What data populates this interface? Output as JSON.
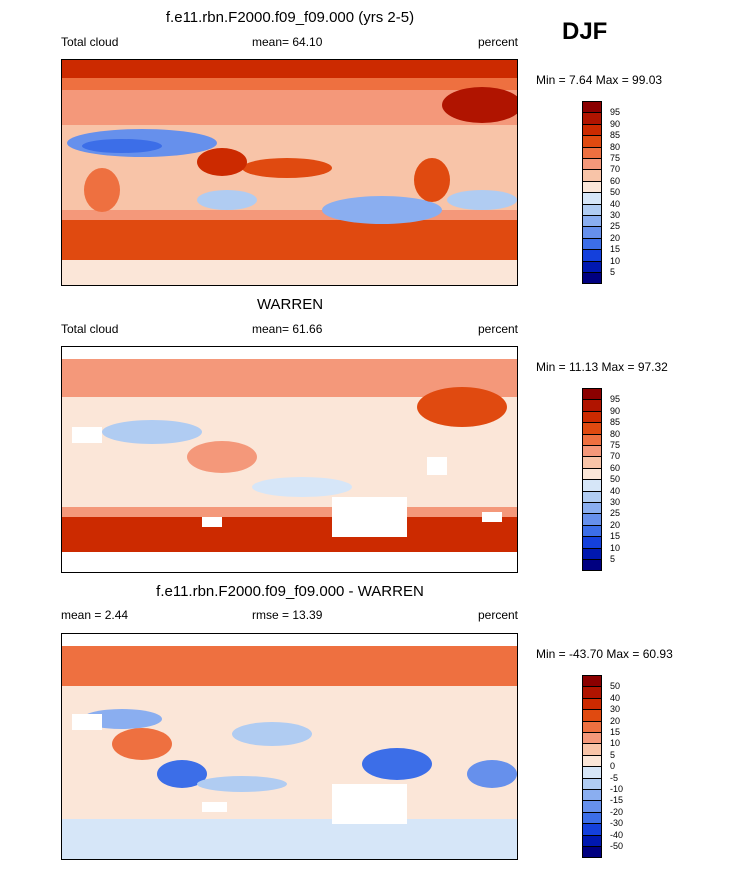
{
  "season": "DJF",
  "panels": [
    {
      "title": "f.e11.rbn.F2000.f09_f09.000 (yrs 2-5)",
      "left_label": "Total cloud",
      "center_label": "mean=  64.10",
      "right_label": "percent",
      "minmax": "Min =   7.64 Max =  99.03",
      "colorbar_labels": [
        "95",
        "90",
        "85",
        "80",
        "75",
        "70",
        "60",
        "50",
        "40",
        "30",
        "25",
        "20",
        "15",
        "10",
        "5"
      ]
    },
    {
      "title": "WARREN",
      "left_label": "Total cloud",
      "center_label": "mean=  61.66",
      "right_label": "percent",
      "minmax": "Min =  11.13 Max =  97.32",
      "colorbar_labels": [
        "95",
        "90",
        "85",
        "80",
        "75",
        "70",
        "60",
        "50",
        "40",
        "30",
        "25",
        "20",
        "15",
        "10",
        "5"
      ]
    },
    {
      "title": "f.e11.rbn.F2000.f09_f09.000 - WARREN",
      "left_label": "mean =   2.44",
      "center_label": "rmse =  13.39",
      "right_label": "percent",
      "minmax": "Min = -43.70 Max =  60.93",
      "colorbar_labels": [
        "50",
        "40",
        "30",
        "20",
        "15",
        "10",
        "5",
        "0",
        "-5",
        "-10",
        "-15",
        "-20",
        "-30",
        "-40",
        "-50"
      ]
    }
  ],
  "chart_data": {
    "type": "heatmap",
    "projection": "global lon-lat, centered on dateline",
    "variable": "Total cloud",
    "units": "percent",
    "colors": [
      "#8b0000",
      "#b01400",
      "#cc2a00",
      "#e04a10",
      "#ee7040",
      "#f4987a",
      "#f8c4a8",
      "#fbe6d8",
      "#d6e6f8",
      "#b0ccf2",
      "#8aaef0",
      "#6690ec",
      "#3c6ee8",
      "#1440dc",
      "#0018b0",
      "#000080"
    ],
    "contour_levels_absolute": [
      5,
      10,
      15,
      20,
      25,
      30,
      40,
      50,
      60,
      70,
      75,
      80,
      85,
      90,
      95
    ],
    "contour_levels_difference": [
      -50,
      -40,
      -30,
      -20,
      -15,
      -10,
      -5,
      0,
      5,
      10,
      15,
      20,
      30,
      40,
      50
    ],
    "panel_stats": [
      {
        "name": "f.e11.rbn.F2000.f09_f09.000 (yrs 2-5)",
        "mean": 64.1,
        "min": 7.64,
        "max": 99.03
      },
      {
        "name": "WARREN",
        "mean": 61.66,
        "min": 11.13,
        "max": 97.32
      },
      {
        "name": "f.e11.rbn.F2000.f09_f09.000 - WARREN",
        "mean": 2.44,
        "rmse": 13.39,
        "min": -43.7,
        "max": 60.93
      }
    ]
  }
}
